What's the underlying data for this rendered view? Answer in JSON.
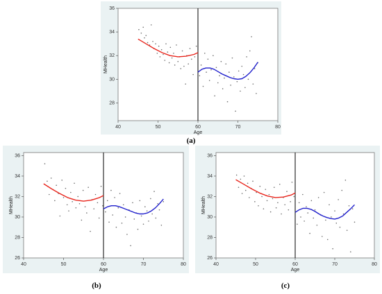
{
  "figure": {
    "captions": [
      "(a)",
      "(b)",
      "(c)"
    ]
  },
  "chart_data": [
    {
      "type": "scatter",
      "panel": "(a)",
      "xlabel": "Age",
      "ylabel": "MHealth",
      "xlim": [
        40,
        80
      ],
      "ylim": [
        26.5,
        36
      ],
      "xticks": [
        40,
        50,
        60,
        70,
        80
      ],
      "yticks": [
        28,
        30,
        32,
        34,
        36
      ],
      "cutoff_x": 60,
      "grid": false,
      "fit_left": {
        "color": "#e8241b",
        "x": [
          45,
          47,
          49,
          51,
          53,
          55,
          57,
          59,
          60
        ],
        "y": [
          33.4,
          33.0,
          32.6,
          32.25,
          32.0,
          31.9,
          31.95,
          32.1,
          32.25
        ]
      },
      "fit_right": {
        "color": "#1e1ecc",
        "x": [
          60,
          61,
          62,
          63,
          64,
          65,
          66,
          67,
          68,
          69,
          70,
          71,
          72,
          73,
          74,
          75
        ],
        "y": [
          30.6,
          30.85,
          30.95,
          30.95,
          30.85,
          30.65,
          30.45,
          30.3,
          30.15,
          30.05,
          30.0,
          30.05,
          30.25,
          30.55,
          30.95,
          31.45
        ]
      },
      "points": [
        [
          45.2,
          34.2
        ],
        [
          45.8,
          33.9
        ],
        [
          46.3,
          34.4
        ],
        [
          46.6,
          33.5
        ],
        [
          47.0,
          33.7
        ],
        [
          47.4,
          33.1
        ],
        [
          47.9,
          32.9
        ],
        [
          48.3,
          34.6
        ],
        [
          48.7,
          33.2
        ],
        [
          49.0,
          32.6
        ],
        [
          49.4,
          33.0
        ],
        [
          49.8,
          32.2
        ],
        [
          50.2,
          32.8
        ],
        [
          50.5,
          31.9
        ],
        [
          50.9,
          32.5
        ],
        [
          51.3,
          32.1
        ],
        [
          51.7,
          31.6
        ],
        [
          52.0,
          33.0
        ],
        [
          52.4,
          32.3
        ],
        [
          52.8,
          31.4
        ],
        [
          53.1,
          32.7
        ],
        [
          53.5,
          31.8
        ],
        [
          53.9,
          32.2
        ],
        [
          54.2,
          31.2
        ],
        [
          54.6,
          32.9
        ],
        [
          55.0,
          31.5
        ],
        [
          55.4,
          31.9
        ],
        [
          55.7,
          30.9
        ],
        [
          56.1,
          32.4
        ],
        [
          56.5,
          31.1
        ],
        [
          56.9,
          29.6
        ],
        [
          57.2,
          32.0
        ],
        [
          57.6,
          31.3
        ],
        [
          58.0,
          32.6
        ],
        [
          58.4,
          31.7
        ],
        [
          58.8,
          30.4
        ],
        [
          59.2,
          31.9
        ],
        [
          59.6,
          32.8
        ],
        [
          60.4,
          30.3
        ],
        [
          60.8,
          31.2
        ],
        [
          61.3,
          29.4
        ],
        [
          61.7,
          32.2
        ],
        [
          62.1,
          30.6
        ],
        [
          62.5,
          31.7
        ],
        [
          62.9,
          29.9
        ],
        [
          63.3,
          30.8
        ],
        [
          63.8,
          32.0
        ],
        [
          64.2,
          28.6
        ],
        [
          64.6,
          31.0
        ],
        [
          65.0,
          29.7
        ],
        [
          65.4,
          30.3
        ],
        [
          65.8,
          31.5
        ],
        [
          66.2,
          29.2
        ],
        [
          66.6,
          30.1
        ],
        [
          67.0,
          31.3
        ],
        [
          67.4,
          28.1
        ],
        [
          67.8,
          30.6
        ],
        [
          68.2,
          29.5
        ],
        [
          68.6,
          31.8
        ],
        [
          69.0,
          30.2
        ],
        [
          69.4,
          27.3
        ],
        [
          69.8,
          29.8
        ],
        [
          70.2,
          30.7
        ],
        [
          70.6,
          29.0
        ],
        [
          71.0,
          31.1
        ],
        [
          71.4,
          30.4
        ],
        [
          71.8,
          29.3
        ],
        [
          72.2,
          31.9
        ],
        [
          72.6,
          30.0
        ],
        [
          73.0,
          32.4
        ],
        [
          73.4,
          33.6
        ],
        [
          73.8,
          29.6
        ],
        [
          74.2,
          30.9
        ],
        [
          74.6,
          28.8
        ],
        [
          75.0,
          31.4
        ]
      ]
    },
    {
      "type": "scatter",
      "panel": "(b)",
      "xlabel": "Age",
      "ylabel": "MHealth",
      "xlim": [
        40,
        80
      ],
      "ylim": [
        26,
        36.3
      ],
      "xticks": [
        40,
        50,
        60,
        70,
        80
      ],
      "yticks": [
        26,
        28,
        30,
        32,
        34,
        36
      ],
      "cutoff_x": 60,
      "grid": false,
      "fit_left": {
        "color": "#e8241b",
        "x": [
          45,
          47,
          49,
          51,
          53,
          55,
          57,
          59,
          60
        ],
        "y": [
          33.25,
          32.75,
          32.3,
          31.9,
          31.65,
          31.55,
          31.65,
          31.9,
          32.1
        ]
      },
      "fit_right": {
        "color": "#1e1ecc",
        "x": [
          60,
          61,
          62,
          63,
          64,
          65,
          66,
          67,
          68,
          69,
          70,
          71,
          72,
          73,
          74,
          75
        ],
        "y": [
          30.8,
          31.0,
          31.1,
          31.1,
          31.0,
          30.85,
          30.7,
          30.55,
          30.4,
          30.3,
          30.3,
          30.4,
          30.6,
          30.9,
          31.3,
          31.75
        ]
      },
      "points": [
        [
          45.3,
          35.2
        ],
        [
          45.9,
          33.5
        ],
        [
          46.4,
          32.2
        ],
        [
          46.9,
          33.8
        ],
        [
          47.3,
          32.7
        ],
        [
          47.8,
          31.6
        ],
        [
          48.2,
          33.1
        ],
        [
          48.7,
          32.3
        ],
        [
          49.1,
          30.1
        ],
        [
          49.6,
          33.6
        ],
        [
          50.0,
          31.9
        ],
        [
          50.5,
          32.8
        ],
        [
          50.9,
          31.2
        ],
        [
          51.3,
          30.6
        ],
        [
          51.8,
          32.4
        ],
        [
          52.2,
          31.5
        ],
        [
          52.7,
          33.3
        ],
        [
          53.1,
          30.9
        ],
        [
          53.6,
          32.0
        ],
        [
          54.0,
          31.3
        ],
        [
          54.5,
          29.7
        ],
        [
          54.9,
          32.6
        ],
        [
          55.4,
          31.0
        ],
        [
          55.8,
          30.4
        ],
        [
          56.2,
          32.9
        ],
        [
          56.7,
          28.6
        ],
        [
          57.1,
          31.7
        ],
        [
          57.6,
          30.8
        ],
        [
          58.0,
          32.2
        ],
        [
          58.5,
          31.4
        ],
        [
          58.9,
          29.9
        ],
        [
          59.4,
          33.0
        ],
        [
          59.8,
          31.1
        ],
        [
          60.5,
          30.5
        ],
        [
          61.0,
          31.6
        ],
        [
          61.4,
          29.5
        ],
        [
          61.9,
          32.6
        ],
        [
          62.3,
          30.2
        ],
        [
          62.8,
          31.9
        ],
        [
          63.2,
          29.0
        ],
        [
          63.7,
          30.9
        ],
        [
          64.1,
          32.3
        ],
        [
          64.6,
          29.4
        ],
        [
          65.0,
          31.2
        ],
        [
          65.5,
          30.0
        ],
        [
          65.9,
          28.3
        ],
        [
          66.4,
          30.7
        ],
        [
          66.8,
          27.2
        ],
        [
          67.3,
          31.4
        ],
        [
          67.7,
          29.8
        ],
        [
          68.2,
          30.4
        ],
        [
          68.6,
          28.8
        ],
        [
          69.1,
          31.6
        ],
        [
          69.5,
          30.1
        ],
        [
          70.0,
          29.3
        ],
        [
          70.4,
          31.0
        ],
        [
          70.9,
          30.6
        ],
        [
          71.3,
          29.6
        ],
        [
          71.8,
          31.8
        ],
        [
          72.2,
          30.3
        ],
        [
          72.7,
          32.5
        ],
        [
          73.1,
          29.9
        ],
        [
          73.6,
          31.3
        ],
        [
          74.0,
          30.7
        ],
        [
          74.5,
          29.2
        ],
        [
          75.0,
          31.5
        ]
      ]
    },
    {
      "type": "scatter",
      "panel": "(c)",
      "xlabel": "Age",
      "ylabel": "MHealth",
      "xlim": [
        40,
        80
      ],
      "ylim": [
        26,
        36.3
      ],
      "xticks": [
        40,
        50,
        60,
        70,
        80
      ],
      "yticks": [
        26,
        28,
        30,
        32,
        34,
        36
      ],
      "cutoff_x": 60,
      "grid": false,
      "fit_left": {
        "color": "#e8241b",
        "x": [
          45,
          47,
          49,
          51,
          53,
          55,
          57,
          59,
          60
        ],
        "y": [
          33.65,
          33.2,
          32.75,
          32.35,
          32.05,
          31.9,
          31.95,
          32.15,
          32.35
        ]
      },
      "fit_right": {
        "color": "#1e1ecc",
        "x": [
          60,
          61,
          62,
          63,
          64,
          65,
          66,
          67,
          68,
          69,
          70,
          71,
          72,
          73,
          74,
          75
        ],
        "y": [
          30.45,
          30.7,
          30.85,
          30.85,
          30.75,
          30.55,
          30.3,
          30.1,
          29.95,
          29.85,
          29.8,
          29.9,
          30.1,
          30.45,
          30.8,
          31.2
        ]
      },
      "points": [
        [
          45.2,
          34.1
        ],
        [
          45.7,
          32.9
        ],
        [
          46.2,
          33.7
        ],
        [
          46.6,
          32.3
        ],
        [
          47.1,
          34.0
        ],
        [
          47.5,
          32.6
        ],
        [
          48.0,
          33.3
        ],
        [
          48.4,
          31.9
        ],
        [
          48.9,
          32.8
        ],
        [
          49.3,
          33.5
        ],
        [
          49.8,
          31.5
        ],
        [
          50.2,
          32.4
        ],
        [
          50.7,
          31.1
        ],
        [
          51.1,
          33.0
        ],
        [
          51.6,
          32.0
        ],
        [
          52.0,
          30.8
        ],
        [
          52.5,
          32.7
        ],
        [
          52.9,
          31.6
        ],
        [
          53.4,
          32.2
        ],
        [
          53.8,
          30.5
        ],
        [
          54.3,
          31.8
        ],
        [
          54.7,
          32.9
        ],
        [
          55.2,
          30.9
        ],
        [
          55.6,
          31.4
        ],
        [
          56.1,
          33.2
        ],
        [
          56.5,
          30.3
        ],
        [
          57.0,
          31.9
        ],
        [
          57.4,
          31.2
        ],
        [
          57.9,
          32.5
        ],
        [
          58.3,
          30.7
        ],
        [
          58.8,
          31.5
        ],
        [
          59.2,
          33.4
        ],
        [
          59.7,
          32.0
        ],
        [
          60.5,
          29.3
        ],
        [
          61.0,
          31.4
        ],
        [
          61.4,
          30.0
        ],
        [
          61.9,
          32.2
        ],
        [
          62.3,
          29.6
        ],
        [
          62.8,
          31.0
        ],
        [
          63.2,
          30.4
        ],
        [
          63.7,
          28.4
        ],
        [
          64.1,
          31.6
        ],
        [
          64.6,
          29.9
        ],
        [
          65.0,
          30.7
        ],
        [
          65.5,
          29.2
        ],
        [
          65.9,
          31.9
        ],
        [
          66.4,
          30.2
        ],
        [
          66.8,
          28.1
        ],
        [
          67.3,
          32.4
        ],
        [
          67.7,
          29.7
        ],
        [
          68.2,
          27.8
        ],
        [
          68.6,
          31.2
        ],
        [
          69.1,
          30.0
        ],
        [
          69.5,
          26.9
        ],
        [
          70.0,
          30.6
        ],
        [
          70.4,
          29.4
        ],
        [
          70.9,
          31.7
        ],
        [
          71.3,
          29.0
        ],
        [
          71.8,
          32.6
        ],
        [
          72.2,
          30.3
        ],
        [
          72.7,
          33.6
        ],
        [
          73.1,
          28.7
        ],
        [
          73.6,
          31.1
        ],
        [
          74.0,
          26.6
        ],
        [
          74.5,
          30.8
        ],
        [
          75.0,
          29.5
        ]
      ]
    }
  ]
}
